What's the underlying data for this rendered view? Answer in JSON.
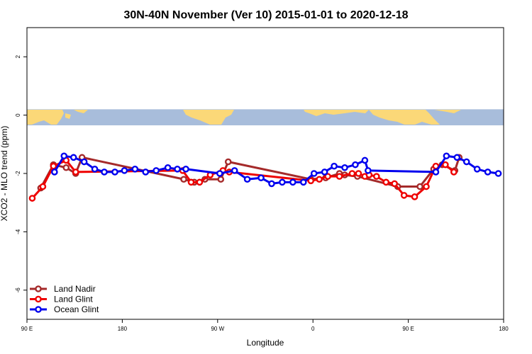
{
  "chart_data": {
    "type": "line",
    "title": "30N-40N November (Ver 10)   2015-01-01 to 2020-12-18",
    "xlabel": "Longitude",
    "ylabel": "XCO2 - MLO trend (ppm)",
    "xlim": [
      90,
      540
    ],
    "ylim": [
      -7,
      3
    ],
    "x_ticks": [
      {
        "value": 90,
        "label": "90 E"
      },
      {
        "value": 180,
        "label": "180"
      },
      {
        "value": 270,
        "label": "90 W"
      },
      {
        "value": 360,
        "label": "0"
      },
      {
        "value": 450,
        "label": "90 E"
      },
      {
        "value": 540,
        "label": "180"
      }
    ],
    "y_ticks": [
      {
        "value": 2,
        "label": "2"
      },
      {
        "value": 0,
        "label": "0"
      },
      {
        "value": -2,
        "label": "-2"
      },
      {
        "value": -4,
        "label": "-4"
      },
      {
        "value": -6,
        "label": "-6"
      }
    ],
    "grid": false,
    "legend_position": "bottom-left",
    "map_band": {
      "ymin": -0.35,
      "ymax": 0.2,
      "ocean_color": "#A8BDDB",
      "land_color": "#FBD878"
    },
    "series": [
      {
        "name": "Land Nadir",
        "color": "#A52A2A",
        "points": [
          [
            103,
            -2.5
          ],
          [
            115,
            -1.7
          ],
          [
            127,
            -1.8
          ],
          [
            136,
            -2.0
          ],
          [
            142,
            -1.45
          ],
          [
            238,
            -2.2
          ],
          [
            248,
            -2.3
          ],
          [
            258,
            -2.2
          ],
          [
            273,
            -2.2
          ],
          [
            280,
            -1.6
          ],
          [
            358,
            -2.2
          ],
          [
            372,
            -2.15
          ],
          [
            385,
            -2.0
          ],
          [
            390,
            -2.05
          ],
          [
            402,
            -2.1
          ],
          [
            440,
            -2.45
          ],
          [
            461,
            -2.45
          ],
          [
            474,
            -1.85
          ],
          [
            482,
            -1.7
          ],
          [
            494,
            -1.9
          ],
          [
            498,
            -1.45
          ]
        ]
      },
      {
        "name": "Land Glint",
        "color": "#EE0000",
        "points": [
          [
            95,
            -2.85
          ],
          [
            105,
            -2.45
          ],
          [
            115,
            -1.75
          ],
          [
            127,
            -1.55
          ],
          [
            136,
            -1.95
          ],
          [
            237,
            -1.9
          ],
          [
            245,
            -2.3
          ],
          [
            253,
            -2.3
          ],
          [
            263,
            -2.05
          ],
          [
            275,
            -1.9
          ],
          [
            281,
            -1.95
          ],
          [
            358,
            -2.25
          ],
          [
            366,
            -2.2
          ],
          [
            374,
            -2.1
          ],
          [
            385,
            -2.1
          ],
          [
            397,
            -2.0
          ],
          [
            403,
            -2.0
          ],
          [
            409,
            -2.1
          ],
          [
            413,
            -2.05
          ],
          [
            420,
            -2.1
          ],
          [
            429,
            -2.3
          ],
          [
            437,
            -2.35
          ],
          [
            446,
            -2.75
          ],
          [
            456,
            -2.8
          ],
          [
            467,
            -2.45
          ],
          [
            476,
            -1.75
          ],
          [
            485,
            -1.7
          ],
          [
            493,
            -1.95
          ]
        ]
      },
      {
        "name": "Ocean Glint",
        "color": "#0000EE",
        "points": [
          [
            116,
            -1.95
          ],
          [
            125,
            -1.4
          ],
          [
            134,
            -1.45
          ],
          [
            144,
            -1.6
          ],
          [
            154,
            -1.85
          ],
          [
            163,
            -1.95
          ],
          [
            173,
            -1.95
          ],
          [
            182,
            -1.9
          ],
          [
            192,
            -1.85
          ],
          [
            202,
            -1.95
          ],
          [
            212,
            -1.9
          ],
          [
            223,
            -1.8
          ],
          [
            232,
            -1.85
          ],
          [
            240,
            -1.85
          ],
          [
            272,
            -2.0
          ],
          [
            286,
            -1.9
          ],
          [
            298,
            -2.2
          ],
          [
            311,
            -2.15
          ],
          [
            321,
            -2.35
          ],
          [
            331,
            -2.3
          ],
          [
            341,
            -2.3
          ],
          [
            351,
            -2.3
          ],
          [
            361,
            -2.0
          ],
          [
            371,
            -1.95
          ],
          [
            380,
            -1.75
          ],
          [
            390,
            -1.8
          ],
          [
            400,
            -1.7
          ],
          [
            409,
            -1.55
          ],
          [
            412,
            -1.9
          ],
          [
            476,
            -1.95
          ],
          [
            486,
            -1.4
          ],
          [
            496,
            -1.45
          ],
          [
            505,
            -1.6
          ],
          [
            515,
            -1.85
          ],
          [
            525,
            -1.95
          ],
          [
            535,
            -2.0
          ]
        ]
      }
    ]
  }
}
